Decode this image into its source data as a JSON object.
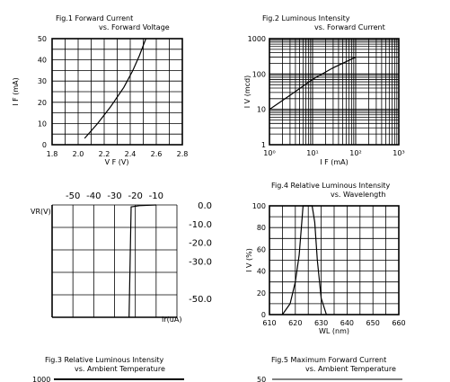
{
  "titles": {
    "fig1_line1": "Fig.1 Forward Current",
    "fig1_line2": "vs. Forward Voltage",
    "fig2_line1": "Fig.2 Luminous Intensity",
    "fig2_line2": "vs. Forward Current",
    "fig4_line1": "Fig.4 Relative Luminous Intensity",
    "fig4_line2": "vs. Wavelength",
    "fig3_line1": "Fig.3 Relative Luminous Intensity",
    "fig3_line2": "vs. Ambient Temperature",
    "fig5_line1": "Fig.5 Maximum Forward Current",
    "fig5_line2": "vs. Ambient Temperature"
  },
  "fig3_partial": {
    "ytick_top": "1000"
  },
  "fig5_partial": {
    "ytick_top": "50"
  },
  "chart_data": [
    {
      "id": "fig1",
      "type": "line",
      "xlabel": "V F (V)",
      "ylabel": "I F (mA)",
      "xlim": [
        1.8,
        2.8
      ],
      "ylim": [
        0,
        50
      ],
      "xticks": [
        "1.8",
        "2.0",
        "2.2",
        "2.4",
        "2.6",
        "2.8"
      ],
      "yticks": [
        "0",
        "10",
        "20",
        "30",
        "40",
        "50"
      ],
      "grid": true,
      "x": [
        2.05,
        2.15,
        2.25,
        2.35,
        2.42,
        2.47,
        2.52
      ],
      "y": [
        3,
        10,
        18,
        27,
        35,
        42,
        50
      ]
    },
    {
      "id": "fig2",
      "type": "line",
      "xscale": "log",
      "yscale": "log",
      "xlabel": "I F (mA)",
      "ylabel": "I V (mcd)",
      "xlim": [
        1,
        1000
      ],
      "ylim": [
        1,
        1000
      ],
      "xticks": [
        "10⁰",
        "10¹",
        "10²",
        "10³"
      ],
      "yticks": [
        "1",
        "10",
        "100",
        "1000"
      ],
      "grid": true,
      "x": [
        1,
        3,
        10,
        30,
        100
      ],
      "y": [
        10,
        25,
        70,
        150,
        300
      ]
    },
    {
      "id": "reverse",
      "type": "line",
      "xlabel": "",
      "ylabel": "VR(V)",
      "y2label": "Ir(uA)",
      "xticks": [
        "-50",
        "-40",
        "-30",
        "-20",
        "-10"
      ],
      "xtick_values": [
        -50,
        -40,
        -30,
        -20,
        -10
      ],
      "yticks": [
        "0.0",
        "-10.0",
        "-20.0",
        "-30.0",
        "-50.0"
      ],
      "ytick_values": [
        0,
        -10,
        -20,
        -30,
        -50
      ],
      "xlim": [
        -60,
        0
      ],
      "ylim": [
        -60,
        0
      ],
      "grid": true,
      "x": [
        -23,
        -22,
        -18,
        -10
      ],
      "y": [
        -60,
        -1,
        -0.4,
        0
      ]
    },
    {
      "id": "fig4",
      "type": "line",
      "xlabel": "WL (nm)",
      "ylabel": "I V (%)",
      "xlim": [
        610,
        660
      ],
      "ylim": [
        0,
        100
      ],
      "xticks": [
        "610",
        "620",
        "630",
        "640",
        "650",
        "660"
      ],
      "yticks": [
        "0",
        "20",
        "40",
        "60",
        "80",
        "100"
      ],
      "grid": true,
      "x": [
        615,
        618,
        620,
        621.5,
        622.5,
        623,
        624,
        625.5,
        626.5,
        627.5,
        628.5,
        630,
        632
      ],
      "y": [
        0,
        10,
        30,
        55,
        85,
        100,
        100,
        100,
        100,
        85,
        50,
        15,
        0
      ]
    }
  ]
}
